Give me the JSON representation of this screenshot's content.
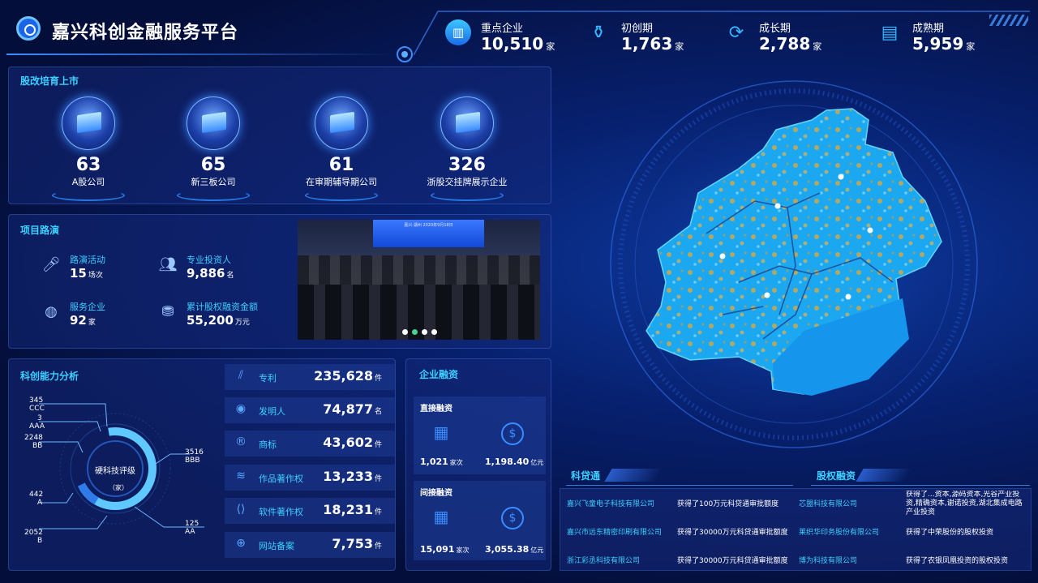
{
  "header": {
    "title": "嘉兴科创金融服务平台",
    "stats": [
      {
        "label": "重点企业",
        "value": "10,510",
        "unit": "家",
        "icon": "building-icon"
      },
      {
        "label": "初创期",
        "value": "1,763",
        "unit": "家",
        "icon": "seedling-icon"
      },
      {
        "label": "成长期",
        "value": "2,788",
        "unit": "家",
        "icon": "growth-arrow-icon"
      },
      {
        "label": "成熟期",
        "value": "5,959",
        "unit": "家",
        "icon": "document-icon"
      }
    ]
  },
  "listing": {
    "title": "股改培育上市",
    "cards": [
      {
        "value": "63",
        "label": "A股公司"
      },
      {
        "value": "65",
        "label": "新三板公司"
      },
      {
        "value": "61",
        "label": "在审期辅导期公司"
      },
      {
        "value": "326",
        "label": "浙股交挂牌展示企业"
      }
    ]
  },
  "roadshow": {
    "title": "项目路演",
    "items": [
      {
        "label": "路演活动",
        "value": "15",
        "unit": "场次",
        "icon": "microphone-icon"
      },
      {
        "label": "专业投资人",
        "value": "9,886",
        "unit": "名",
        "icon": "people-icon"
      },
      {
        "label": "服务企业",
        "value": "92",
        "unit": "家",
        "icon": "service-icon"
      },
      {
        "label": "累计股权融资金额",
        "value": "55,200",
        "unit": "万元",
        "icon": "coins-icon"
      }
    ],
    "photo_caption": "嘉兴·湖州 2020年9月18日"
  },
  "innovation": {
    "title": "科创能力分析",
    "donut_center": "硬科技评级",
    "donut_unit": "（家）",
    "ratings": [
      {
        "count": "345",
        "grade": "CCC"
      },
      {
        "count": "3",
        "grade": "AAA"
      },
      {
        "count": "2248",
        "grade": "BB"
      },
      {
        "count": "3516",
        "grade": "BBB"
      },
      {
        "count": "442",
        "grade": "A"
      },
      {
        "count": "125",
        "grade": "AA"
      },
      {
        "count": "2052",
        "grade": "B"
      }
    ],
    "metrics": [
      {
        "label": "专利",
        "value": "235,628",
        "unit": "件",
        "icon": "patent-icon"
      },
      {
        "label": "发明人",
        "value": "74,877",
        "unit": "名",
        "icon": "person-icon"
      },
      {
        "label": "商标",
        "value": "43,602",
        "unit": "件",
        "icon": "trademark-icon"
      },
      {
        "label": "作品著作权",
        "value": "13,233",
        "unit": "件",
        "icon": "layers-icon"
      },
      {
        "label": "软件著作权",
        "value": "18,231",
        "unit": "件",
        "icon": "code-icon"
      },
      {
        "label": "网站备案",
        "value": "7,753",
        "unit": "件",
        "icon": "globe-icon"
      }
    ]
  },
  "financing": {
    "title": "企业融资",
    "direct": {
      "title": "直接融资",
      "count": "1,021",
      "count_unit": "家次",
      "amount": "1,198.40",
      "amount_unit": "亿元"
    },
    "indirect": {
      "title": "间接融资",
      "count": "15,091",
      "count_unit": "家次",
      "amount": "3,055.38",
      "amount_unit": "亿元"
    }
  },
  "loans": {
    "tab_left": "科贷通",
    "tab_right": "股权融资",
    "left_rows": [
      {
        "company": "嘉兴飞童电子科技有限公司",
        "text": "获得了100万元科贷通审批额度"
      },
      {
        "company": "嘉兴市远东精密印刷有限公司",
        "text": "获得了30000万元科贷通审批额度"
      },
      {
        "company": "浙江彩丞科技有限公司",
        "text": "获得了30000万元科贷通审批额度"
      }
    ],
    "right_rows": [
      {
        "company": "芯盟科技有限公司",
        "text": "获得了...资本,源码资本,光谷产业投资,精确资本,谢诺投资,湖北集成电路产业投资"
      },
      {
        "company": "莱织华印务股份有限公司",
        "text": "获得了中荣股份的股权投资"
      },
      {
        "company": "博为科技有限公司",
        "text": "获得了农银凤凰投资的股权投资"
      }
    ]
  },
  "colors": {
    "accent": "#3ed0ff",
    "panel": "#142878",
    "bg": "#050f3a"
  }
}
